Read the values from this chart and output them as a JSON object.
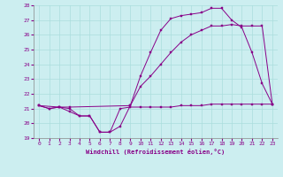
{
  "xlabel": "Windchill (Refroidissement éolien,°C)",
  "xlim": [
    -0.5,
    23.5
  ],
  "ylim": [
    19,
    28
  ],
  "yticks": [
    19,
    20,
    21,
    22,
    23,
    24,
    25,
    26,
    27,
    28
  ],
  "xticks": [
    0,
    1,
    2,
    3,
    4,
    5,
    6,
    7,
    8,
    9,
    10,
    11,
    12,
    13,
    14,
    15,
    16,
    17,
    18,
    19,
    20,
    21,
    22,
    23
  ],
  "bg_color": "#cceef0",
  "line_color": "#880088",
  "grid_color": "#aadddd",
  "line1_x": [
    0,
    1,
    2,
    3,
    4,
    5,
    6,
    7,
    8,
    9,
    10,
    11,
    12,
    13,
    14,
    15,
    16,
    17,
    18,
    19,
    20,
    21,
    22,
    23
  ],
  "line1_y": [
    21.2,
    21.0,
    21.1,
    21.0,
    20.5,
    20.5,
    19.4,
    19.4,
    21.0,
    21.1,
    21.1,
    21.1,
    21.1,
    21.1,
    21.2,
    21.2,
    21.2,
    21.3,
    21.3,
    21.3,
    21.3,
    21.3,
    21.3,
    21.3
  ],
  "line2_x": [
    0,
    1,
    2,
    3,
    4,
    5,
    6,
    7,
    8,
    9,
    10,
    11,
    12,
    13,
    14,
    15,
    16,
    17,
    18,
    19,
    20,
    21,
    22,
    23
  ],
  "line2_y": [
    21.2,
    21.0,
    21.1,
    20.8,
    20.5,
    20.5,
    19.4,
    19.4,
    19.8,
    21.2,
    23.2,
    24.8,
    26.3,
    27.1,
    27.3,
    27.4,
    27.5,
    27.8,
    27.8,
    27.0,
    26.5,
    24.8,
    22.7,
    21.3
  ],
  "line3_x": [
    0,
    2,
    3,
    9,
    10,
    11,
    12,
    13,
    14,
    15,
    16,
    17,
    18,
    19,
    20,
    21,
    22,
    23
  ],
  "line3_y": [
    21.2,
    21.1,
    21.1,
    21.2,
    22.5,
    23.2,
    24.0,
    24.8,
    25.5,
    26.0,
    26.3,
    26.6,
    26.6,
    26.7,
    26.6,
    26.6,
    26.6,
    21.3
  ]
}
